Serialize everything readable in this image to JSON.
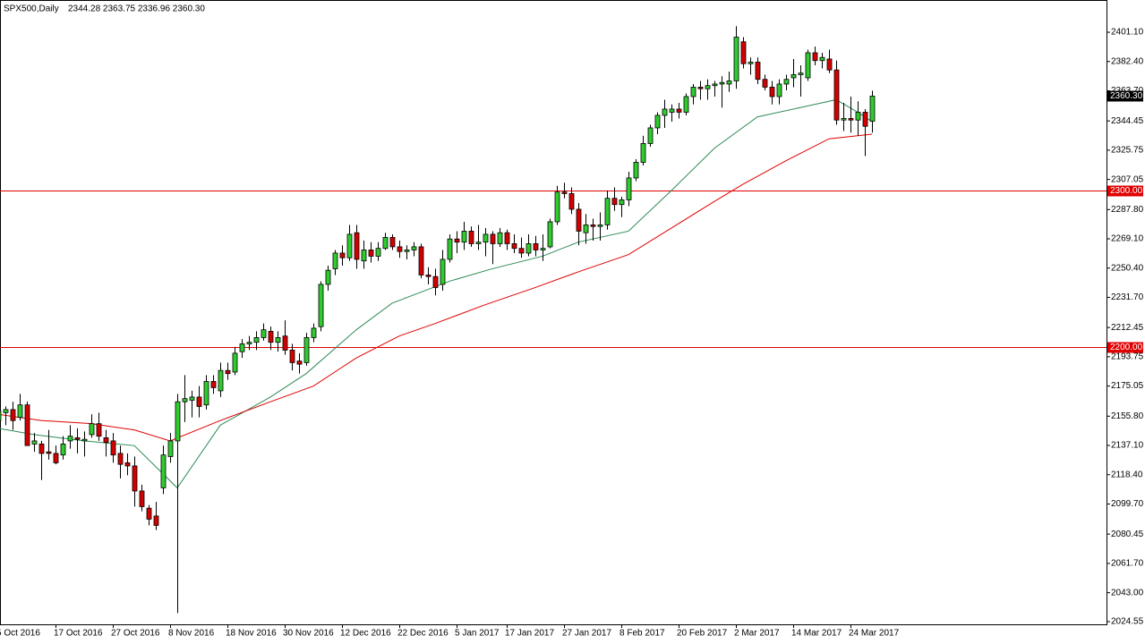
{
  "chart_data": {
    "type": "candlestick",
    "title": "SPX500,Daily",
    "subtitle": "2344.28 2363.75 2336.96 2360.30",
    "categories": [
      "5 Oct 2016",
      null,
      null,
      null,
      null,
      null,
      null,
      null,
      "17 Oct 2016",
      null,
      null,
      null,
      null,
      null,
      null,
      null,
      "27 Oct 2016",
      null,
      null,
      null,
      null,
      null,
      null,
      null,
      "8 Nov 2016",
      null,
      null,
      null,
      null,
      null,
      null,
      null,
      "18 Nov 2016",
      null,
      null,
      null,
      null,
      null,
      null,
      null,
      "30 Nov 2016",
      null,
      null,
      null,
      null,
      null,
      null,
      null,
      "12 Dec 2016",
      null,
      null,
      null,
      null,
      null,
      null,
      null,
      "22 Dec 2016",
      null,
      null,
      null,
      null,
      null,
      null,
      null,
      "5 Jan 2017",
      null,
      null,
      null,
      null,
      null,
      null,
      "17 Jan 2017",
      null,
      null,
      null,
      null,
      null,
      null,
      null,
      "27 Jan 2017",
      null,
      null,
      null,
      null,
      null,
      null,
      null,
      "8 Feb 2017",
      null,
      null,
      null,
      null,
      null,
      null,
      null,
      "20 Feb 2017",
      null,
      null,
      null,
      null,
      null,
      null,
      null,
      "2 Mar 2017",
      null,
      null,
      null,
      null,
      null,
      null,
      null,
      "14 Mar 2017",
      null,
      null,
      null,
      null,
      null,
      null,
      null,
      "24 Mar 2017",
      null,
      null,
      null
    ],
    "open": [
      2153,
      2158,
      2160,
      2155,
      2163,
      2138,
      2138,
      2133,
      2132,
      2131,
      2140,
      2142,
      2140,
      2144,
      2151,
      2142,
      2140,
      2132,
      2126,
      2124,
      2108,
      2097,
      2092,
      2110,
      2130,
      2140,
      2165,
      2166,
      2168,
      2163,
      2178,
      2172,
      2185,
      2184,
      2197,
      2202,
      2203,
      2206,
      2210,
      2203,
      2207,
      2198,
      2191,
      2190,
      2206,
      2213,
      2240,
      2250,
      2260,
      2257,
      2273,
      2255,
      2262,
      2258,
      2263,
      2270,
      2264,
      2261,
      2262,
      2264,
      2246,
      2245,
      2240,
      2256,
      2269,
      2267,
      2274,
      2266,
      2267,
      2272,
      2266,
      2273,
      2266,
      2263,
      2260,
      2266,
      2262,
      2264,
      2280,
      2299,
      2298,
      2288,
      2273,
      2278,
      2277,
      2278,
      2295,
      2291,
      2294,
      2308,
      2318,
      2330,
      2340,
      2348,
      2350,
      2352,
      2350,
      2360,
      2366,
      2365,
      2367,
      2368,
      2368,
      2370,
      2395,
      2381,
      2382,
      2371,
      2366,
      2360,
      2368,
      2372,
      2374,
      2372,
      2388,
      2383,
      2384,
      2377,
      2345,
      2346,
      2345,
      2350,
      2344.28
    ],
    "high": [
      2163,
      2162,
      2165,
      2170,
      2165,
      2145,
      2140,
      2147,
      2137,
      2143,
      2150,
      2148,
      2146,
      2157,
      2158,
      2147,
      2145,
      2137,
      2132,
      2130,
      2112,
      2099,
      2101,
      2137,
      2145,
      2170,
      2182,
      2172,
      2175,
      2182,
      2182,
      2190,
      2190,
      2200,
      2205,
      2207,
      2210,
      2215,
      2213,
      2210,
      2217,
      2202,
      2196,
      2209,
      2215,
      2242,
      2252,
      2262,
      2265,
      2278,
      2278,
      2268,
      2267,
      2267,
      2273,
      2272,
      2268,
      2265,
      2267,
      2266,
      2251,
      2250,
      2262,
      2272,
      2274,
      2280,
      2277,
      2278,
      2276,
      2274,
      2276,
      2275,
      2272,
      2270,
      2272,
      2271,
      2272,
      2282,
      2303,
      2305,
      2302,
      2292,
      2285,
      2282,
      2286,
      2300,
      2302,
      2296,
      2312,
      2320,
      2335,
      2342,
      2350,
      2358,
      2355,
      2356,
      2362,
      2368,
      2370,
      2371,
      2370,
      2373,
      2376,
      2405,
      2398,
      2385,
      2385,
      2374,
      2370,
      2371,
      2374,
      2384,
      2380,
      2390,
      2392,
      2388,
      2390,
      2383,
      2356,
      2360,
      2357,
      2352,
      2363.75
    ],
    "low": [
      2150,
      2150,
      2147,
      2153,
      2140,
      2133,
      2115,
      2128,
      2125,
      2128,
      2135,
      2132,
      2130,
      2142,
      2140,
      2130,
      2126,
      2116,
      2118,
      2098,
      2095,
      2086,
      2083,
      2106,
      2126,
      2030,
      2152,
      2155,
      2155,
      2160,
      2170,
      2168,
      2179,
      2182,
      2193,
      2198,
      2198,
      2204,
      2198,
      2197,
      2195,
      2185,
      2183,
      2188,
      2203,
      2210,
      2236,
      2246,
      2252,
      2255,
      2250,
      2250,
      2254,
      2255,
      2262,
      2262,
      2257,
      2256,
      2258,
      2244,
      2240,
      2233,
      2236,
      2254,
      2260,
      2262,
      2264,
      2262,
      2258,
      2253,
      2264,
      2262,
      2260,
      2257,
      2258,
      2258,
      2255,
      2263,
      2278,
      2295,
      2285,
      2265,
      2266,
      2268,
      2268,
      2275,
      2287,
      2283,
      2290,
      2306,
      2316,
      2328,
      2336,
      2340,
      2344,
      2346,
      2348,
      2355,
      2358,
      2358,
      2360,
      2353,
      2363,
      2365,
      2378,
      2374,
      2368,
      2364,
      2355,
      2355,
      2364,
      2366,
      2360,
      2370,
      2380,
      2378,
      2375,
      2342,
      2338,
      2337,
      2335,
      2322,
      2336.96
    ],
    "close": [
      2159,
      2160,
      2153,
      2163,
      2137,
      2140,
      2132,
      2132,
      2126,
      2138,
      2143,
      2141,
      2141,
      2151,
      2143,
      2139,
      2131,
      2125,
      2124,
      2108,
      2098,
      2090,
      2086,
      2131,
      2140,
      2165,
      2167,
      2168,
      2162,
      2178,
      2174,
      2185,
      2183,
      2196,
      2202,
      2203,
      2206,
      2211,
      2203,
      2206,
      2198,
      2190,
      2189,
      2206,
      2212,
      2240,
      2249,
      2260,
      2257,
      2272,
      2256,
      2262,
      2258,
      2263,
      2270,
      2264,
      2261,
      2262,
      2264,
      2246,
      2245,
      2238,
      2256,
      2269,
      2267,
      2274,
      2266,
      2267,
      2272,
      2266,
      2273,
      2266,
      2263,
      2260,
      2266,
      2262,
      2263,
      2280,
      2299,
      2298,
      2288,
      2274,
      2278,
      2277,
      2278,
      2295,
      2291,
      2294,
      2308,
      2318,
      2330,
      2340,
      2348,
      2352,
      2352,
      2350,
      2360,
      2366,
      2365,
      2367,
      2368,
      2369,
      2370,
      2398,
      2381,
      2382,
      2371,
      2366,
      2360,
      2368,
      2371,
      2374,
      2375,
      2388,
      2383,
      2385,
      2377,
      2345,
      2346,
      2345,
      2350,
      2341,
      2360.3
    ],
    "up_color": "#2ecc2e",
    "down_color": "#d40000",
    "series": [
      {
        "color": "#2e8b57",
        "x": [
          0,
          5,
          12,
          19,
          25,
          31,
          38,
          43,
          50,
          55,
          63,
          69,
          76,
          81,
          88,
          94,
          100,
          106,
          113,
          117,
          120,
          122
        ],
        "values": [
          2148,
          2144,
          2140,
          2137,
          2110,
          2150,
          2168,
          2183,
          2211,
          2228,
          2242,
          2250,
          2258,
          2267,
          2274,
          2300,
          2327,
          2347,
          2354,
          2358,
          2350,
          2344
        ]
      },
      {
        "color": "#e00000",
        "x": [
          0,
          6,
          13,
          19,
          24,
          31,
          38,
          44,
          50,
          56,
          61,
          68,
          75,
          81,
          88,
          94,
          100,
          104,
          110,
          116,
          122
        ],
        "values": [
          2157,
          2153,
          2151,
          2147,
          2140,
          2153,
          2165,
          2175,
          2193,
          2207,
          2215,
          2227,
          2238,
          2248,
          2259,
          2276,
          2293,
          2304,
          2319,
          2333,
          2336
        ]
      }
    ],
    "hlines": [
      {
        "value": 2300,
        "label": "2300.00",
        "color": "#e00000"
      },
      {
        "value": 2200,
        "label": "2200.00",
        "color": "#e00000"
      }
    ],
    "last_price": {
      "value": 2360.3,
      "label": "2360.30"
    },
    "ylim": [
      2022.8,
      2421.7
    ],
    "yticks": [
      {
        "value": 2024.55,
        "label": "2024.55"
      },
      {
        "value": 2043,
        "label": "2043.00"
      },
      {
        "value": 2061.7,
        "label": "2061.70"
      },
      {
        "value": 2080.45,
        "label": "2080.45"
      },
      {
        "value": 2099.7,
        "label": "2099.70"
      },
      {
        "value": 2118.4,
        "label": "2118.40"
      },
      {
        "value": 2137.1,
        "label": "2137.10"
      },
      {
        "value": 2155.8,
        "label": "2155.80"
      },
      {
        "value": 2175.05,
        "label": "2175.05"
      },
      {
        "value": 2193.75,
        "label": "2193.75"
      },
      {
        "value": 2212.45,
        "label": "2212.45"
      },
      {
        "value": 2231.7,
        "label": "2231.70"
      },
      {
        "value": 2250.4,
        "label": "2250.40"
      },
      {
        "value": 2269.1,
        "label": "2269.10"
      },
      {
        "value": 2287.8,
        "label": "2287.80"
      },
      {
        "value": 2307.05,
        "label": "2307.05"
      },
      {
        "value": 2325.75,
        "label": "2325.75"
      },
      {
        "value": 2344.45,
        "label": "2344.45"
      },
      {
        "value": 2363.7,
        "label": "2363.70"
      },
      {
        "value": 2382.4,
        "label": "2382.40"
      },
      {
        "value": 2401.1,
        "label": "2401.10"
      }
    ],
    "grid": false
  }
}
